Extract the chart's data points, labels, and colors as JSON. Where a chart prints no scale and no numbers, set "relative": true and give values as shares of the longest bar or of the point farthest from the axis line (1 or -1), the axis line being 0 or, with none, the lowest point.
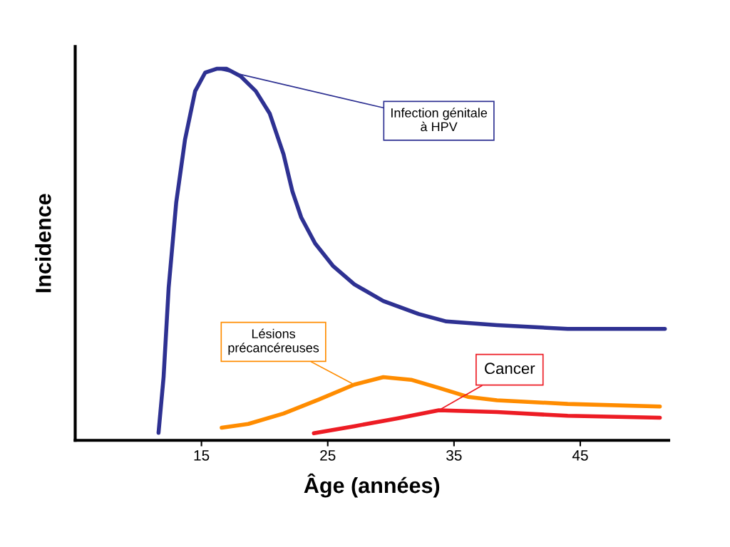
{
  "chart_data": {
    "type": "line",
    "relative": true,
    "xlabel": "Âge (années)",
    "ylabel": "Incidence",
    "xlim": [
      5,
      52
    ],
    "xticks": [
      15,
      25,
      35,
      45
    ],
    "grid": false,
    "legend": false,
    "marker": "none",
    "line_style": "solid",
    "series": [
      {
        "name": "Infection génitale\nà HPV",
        "color": "#2e3192",
        "x": [
          11.6,
          12.0,
          12.4,
          13.0,
          13.7,
          14.5,
          15.3,
          16.2,
          17.0,
          18.1,
          19.3,
          20.4,
          21.5,
          22.2,
          22.9,
          24.0,
          25.4,
          27.1,
          29.4,
          32.2,
          34.4,
          38.4,
          44.0,
          51.7
        ],
        "values": [
          0.02,
          0.17,
          0.41,
          0.64,
          0.81,
          0.94,
          0.99,
          1.0,
          1.0,
          0.98,
          0.94,
          0.88,
          0.77,
          0.67,
          0.6,
          0.53,
          0.47,
          0.42,
          0.375,
          0.34,
          0.32,
          0.31,
          0.3,
          0.3
        ]
      },
      {
        "name": "Lésions\nprécancéreuses",
        "color": "#ff8c00",
        "x": [
          16.6,
          18.7,
          21.5,
          24.3,
          27.1,
          29.4,
          31.6,
          33.9,
          36.1,
          38.4,
          44.0,
          51.3
        ],
        "values": [
          0.034,
          0.044,
          0.072,
          0.11,
          0.15,
          0.17,
          0.163,
          0.14,
          0.117,
          0.108,
          0.098,
          0.091
        ]
      },
      {
        "name": "Cancer",
        "color": "#ed1c24",
        "x": [
          23.9,
          27.1,
          30.5,
          33.8,
          38.4,
          44.0,
          51.3
        ],
        "values": [
          0.019,
          0.038,
          0.059,
          0.081,
          0.076,
          0.066,
          0.061
        ]
      }
    ]
  }
}
